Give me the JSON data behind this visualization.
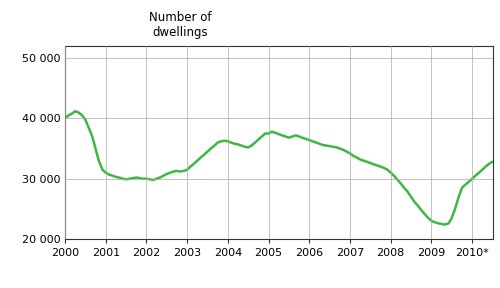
{
  "ylabel_text": "Number of\ndwellings",
  "line_color": "#3cb843",
  "line_width": 1.8,
  "background_color": "#ffffff",
  "ylim": [
    20000,
    52000
  ],
  "yticks": [
    20000,
    30000,
    40000,
    50000
  ],
  "ytick_labels": [
    "20 000",
    "30 000",
    "40 000",
    "50 000"
  ],
  "xtick_labels": [
    "2000",
    "2001",
    "2002",
    "2003",
    "2004",
    "2005",
    "2006",
    "2007",
    "2008",
    "2009",
    "2010*"
  ],
  "x_values": [
    0.0,
    0.08,
    0.17,
    0.25,
    0.33,
    0.42,
    0.5,
    0.58,
    0.67,
    0.75,
    0.83,
    0.92,
    1.0,
    1.08,
    1.17,
    1.25,
    1.33,
    1.42,
    1.5,
    1.58,
    1.67,
    1.75,
    1.83,
    1.92,
    2.0,
    2.08,
    2.17,
    2.25,
    2.33,
    2.42,
    2.5,
    2.58,
    2.67,
    2.75,
    2.83,
    2.92,
    3.0,
    3.08,
    3.17,
    3.25,
    3.33,
    3.42,
    3.5,
    3.58,
    3.67,
    3.75,
    3.83,
    3.92,
    4.0,
    4.08,
    4.17,
    4.25,
    4.33,
    4.42,
    4.5,
    4.58,
    4.67,
    4.75,
    4.83,
    4.92,
    5.0,
    5.08,
    5.17,
    5.25,
    5.33,
    5.42,
    5.5,
    5.58,
    5.67,
    5.75,
    5.83,
    5.92,
    6.0,
    6.08,
    6.17,
    6.25,
    6.33,
    6.42,
    6.5,
    6.58,
    6.67,
    6.75,
    6.83,
    6.92,
    7.0,
    7.08,
    7.17,
    7.25,
    7.33,
    7.42,
    7.5,
    7.58,
    7.67,
    7.75,
    7.83,
    7.92,
    8.0,
    8.08,
    8.17,
    8.25,
    8.33,
    8.42,
    8.5,
    8.58,
    8.67,
    8.75,
    8.83,
    8.92,
    9.0,
    9.08,
    9.17,
    9.25,
    9.33,
    9.42,
    9.5,
    9.58,
    9.67,
    9.75,
    9.83,
    9.92,
    10.0,
    10.08,
    10.17,
    10.25,
    10.33,
    10.42,
    10.5,
    10.58,
    10.67
  ],
  "y_values": [
    40000,
    40500,
    40800,
    41200,
    41000,
    40500,
    39800,
    38500,
    37000,
    35000,
    33000,
    31500,
    31000,
    30700,
    30500,
    30300,
    30200,
    30000,
    29900,
    30000,
    30100,
    30200,
    30100,
    30000,
    30000,
    29900,
    29800,
    30000,
    30200,
    30500,
    30800,
    31000,
    31200,
    31300,
    31200,
    31300,
    31500,
    32000,
    32500,
    33000,
    33500,
    34000,
    34500,
    35000,
    35500,
    36000,
    36200,
    36300,
    36200,
    36000,
    35800,
    35700,
    35500,
    35300,
    35200,
    35500,
    36000,
    36500,
    37000,
    37500,
    37500,
    37800,
    37600,
    37400,
    37200,
    37000,
    36800,
    37000,
    37200,
    37000,
    36800,
    36600,
    36400,
    36200,
    36000,
    35800,
    35600,
    35500,
    35400,
    35300,
    35200,
    35000,
    34800,
    34500,
    34200,
    33800,
    33500,
    33200,
    33000,
    32800,
    32600,
    32400,
    32200,
    32000,
    31800,
    31500,
    31000,
    30500,
    29800,
    29200,
    28500,
    27800,
    27000,
    26200,
    25500,
    24800,
    24200,
    23500,
    23000,
    22800,
    22600,
    22500,
    22400,
    22600,
    23500,
    25000,
    27000,
    28500,
    29000,
    29500,
    30000,
    30500,
    31000,
    31500,
    32000,
    32500,
    32800,
    33000,
    33200
  ]
}
